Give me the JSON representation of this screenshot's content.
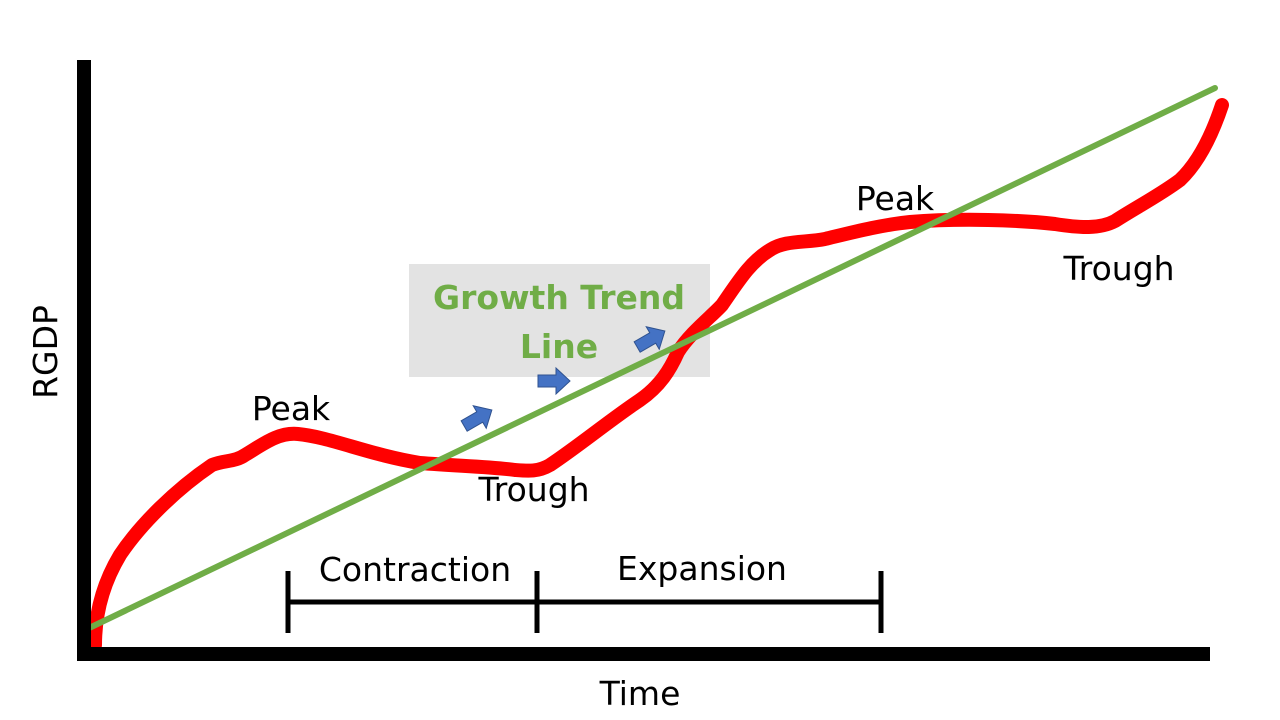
{
  "diagram": {
    "y_axis_label": "RGDP",
    "x_axis_label": "Time",
    "trend_label_line1": "Growth Trend",
    "trend_label_line2": "Line",
    "peak_1": "Peak",
    "trough_1": "Trough",
    "peak_2": "Peak",
    "trough_2": "Trough",
    "contraction": "Contraction",
    "expansion": "Expansion",
    "colors": {
      "business_cycle": "#ff0000",
      "trend_line": "#70ad47",
      "trend_label": "#70ad47",
      "trend_box": "#e3e3e3",
      "arrows": "#4472c4",
      "axes": "#000000"
    },
    "arrow_icon": "right-arrow-icon"
  }
}
